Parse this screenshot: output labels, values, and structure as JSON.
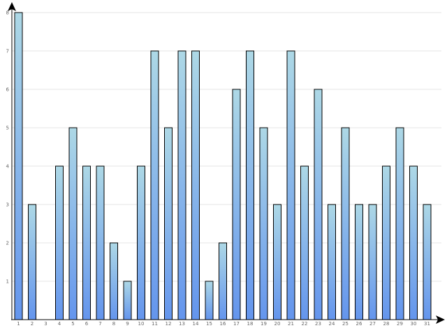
{
  "chart_data": {
    "type": "bar",
    "categories": [
      "1",
      "2",
      "3",
      "4",
      "5",
      "6",
      "7",
      "8",
      "9",
      "10",
      "11",
      "12",
      "13",
      "14",
      "15",
      "16",
      "17",
      "18",
      "19",
      "20",
      "21",
      "22",
      "23",
      "24",
      "25",
      "26",
      "27",
      "28",
      "29",
      "30",
      "31"
    ],
    "values": [
      8,
      3,
      0,
      4,
      5,
      4,
      4,
      2,
      1,
      4,
      7,
      5,
      7,
      7,
      1,
      2,
      6,
      7,
      5,
      3,
      7,
      4,
      6,
      3,
      5,
      3,
      3,
      4,
      5,
      4,
      3
    ],
    "y_ticks": [
      "1",
      "2",
      "3",
      "4",
      "5",
      "6",
      "7",
      "8"
    ],
    "ylim": [
      0,
      8
    ],
    "grid": true,
    "legend": "none",
    "colors": {
      "bar_top": "#add8e6",
      "bar_bottom": "#6495ed",
      "grid": "#e6e6e6",
      "axis": "#000000"
    }
  }
}
